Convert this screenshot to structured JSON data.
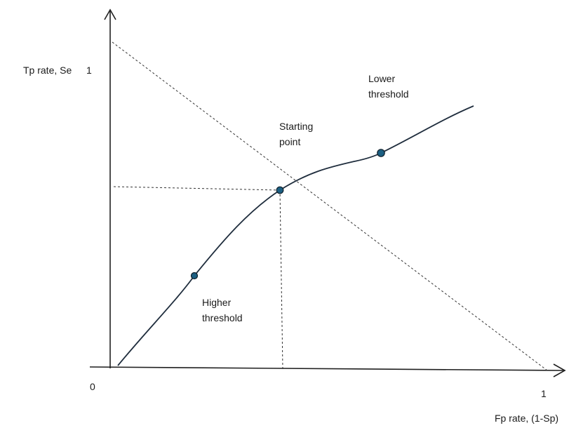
{
  "diagram": {
    "type": "roc-curve-schematic",
    "y_axis_label": "Tp rate, Se",
    "y_max_tick": "1",
    "origin_label": "0",
    "x_max_tick": "1",
    "x_axis_label": "Fp rate, (1-Sp)",
    "annotations": {
      "starting_point": [
        "Starting",
        "point"
      ],
      "lower_threshold": [
        "Lower",
        "threshold"
      ],
      "higher_threshold": [
        "Higher",
        "threshold"
      ]
    },
    "colors": {
      "axis": "#1f1f1f",
      "curve": "#1f2d3d",
      "point_fill": "#1c5f82",
      "guide": "#333333"
    }
  }
}
